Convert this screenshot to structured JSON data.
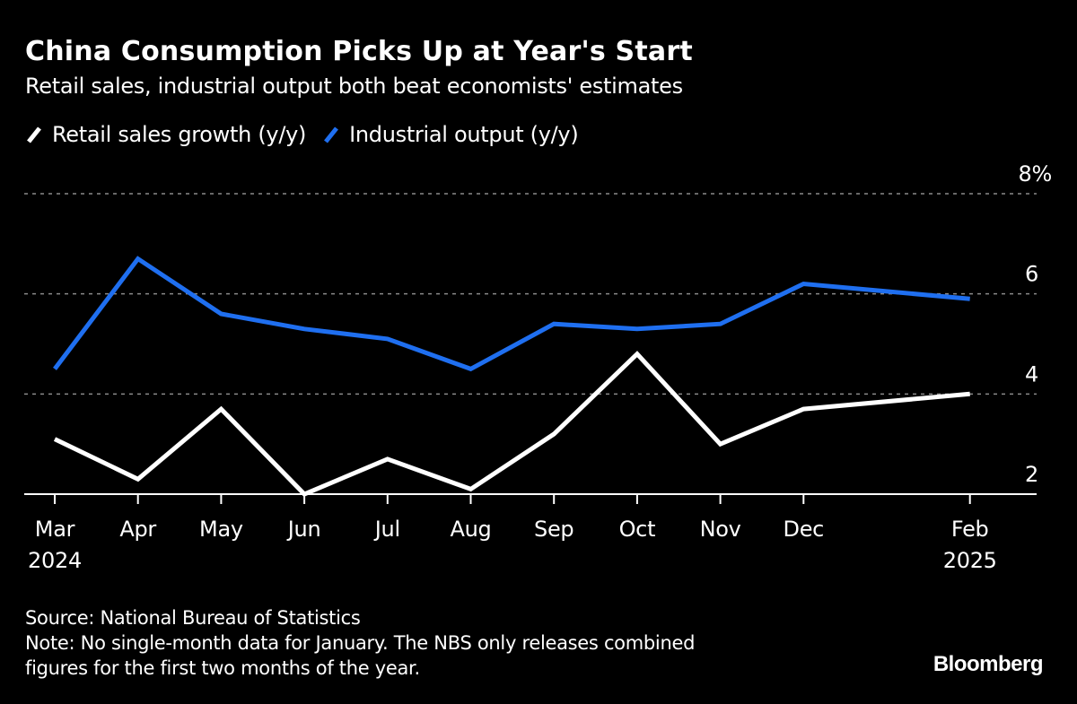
{
  "header": {
    "title": "China Consumption Picks Up at Year's Start",
    "subtitle": "Retail sales, industrial output both beat economists' estimates"
  },
  "legend": [
    {
      "label": "Retail sales growth (y/y)",
      "color": "#ffffff"
    },
    {
      "label": "Industrial output (y/y)",
      "color": "#1f6ff0"
    }
  ],
  "footer": {
    "source": "Source: National Bureau of Statistics",
    "note_line1": "Note: No single-month data for January. The NBS only releases combined",
    "note_line2": "figures for the first two months of the year."
  },
  "brand": "Bloomberg",
  "chart_data": {
    "type": "line",
    "title": "China Consumption Picks Up at Year's Start",
    "subtitle": "Retail sales, industrial output both beat economists' estimates",
    "xlabel": "",
    "ylabel": "",
    "x": [
      "2024-03",
      "2024-04",
      "2024-05",
      "2024-06",
      "2024-07",
      "2024-08",
      "2024-09",
      "2024-10",
      "2024-11",
      "2024-12",
      "2025-02"
    ],
    "x_month_index": [
      0,
      1,
      2,
      3,
      4,
      5,
      6,
      7,
      8,
      9,
      11
    ],
    "x_tick_labels": [
      {
        "month": "Mar",
        "year": "2024"
      },
      {
        "month": "Apr",
        "year": ""
      },
      {
        "month": "May",
        "year": ""
      },
      {
        "month": "Jun",
        "year": ""
      },
      {
        "month": "Jul",
        "year": ""
      },
      {
        "month": "Aug",
        "year": ""
      },
      {
        "month": "Sep",
        "year": ""
      },
      {
        "month": "Oct",
        "year": ""
      },
      {
        "month": "Nov",
        "year": ""
      },
      {
        "month": "Dec",
        "year": ""
      },
      {
        "month": "Feb",
        "year": "2025"
      }
    ],
    "series": [
      {
        "name": "Retail sales growth (y/y)",
        "color": "#ffffff",
        "values": [
          3.1,
          2.3,
          3.7,
          2.0,
          2.7,
          2.1,
          3.2,
          4.8,
          3.0,
          3.7,
          4.0
        ]
      },
      {
        "name": "Industrial output (y/y)",
        "color": "#1f6ff0",
        "values": [
          4.5,
          6.7,
          5.6,
          5.3,
          5.1,
          4.5,
          5.4,
          5.3,
          5.4,
          6.2,
          5.9
        ]
      }
    ],
    "ylim": [
      2,
      8
    ],
    "y_ticks": [
      2,
      4,
      6,
      8
    ],
    "y_tick_labels": [
      "2",
      "4",
      "6",
      "8%"
    ],
    "y_axis_position": "right",
    "grid": true,
    "legend_position": "top-left"
  }
}
